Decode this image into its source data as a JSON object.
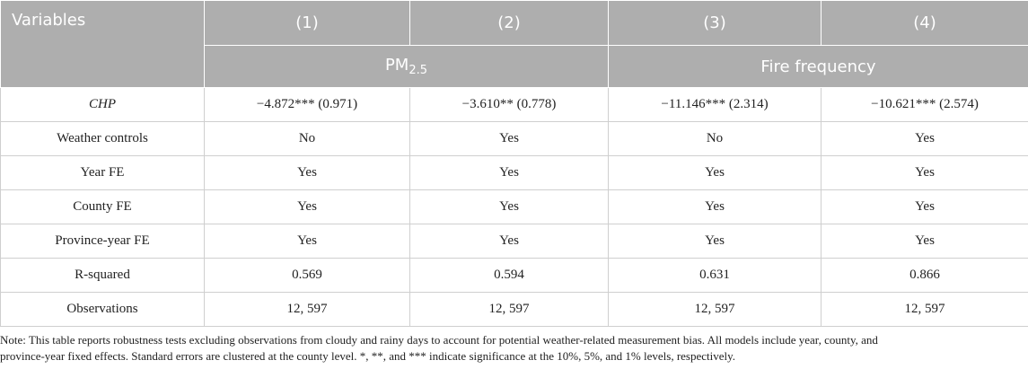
{
  "header": {
    "variables": "Variables",
    "columns": [
      "(1)",
      "(2)",
      "(3)",
      "(4)"
    ],
    "group1_main": "PM",
    "group1_sub": "2.5",
    "group2": "Fire frequency"
  },
  "rows": [
    {
      "label": "CHP",
      "cells": [
        "−4.872*** (0.971)",
        "−3.610** (0.778)",
        "−11.146*** (2.314)",
        "−10.621*** (2.574)"
      ]
    },
    {
      "label": "Weather controls",
      "cells": [
        "No",
        "Yes",
        "No",
        "Yes"
      ]
    },
    {
      "label": "Year FE",
      "cells": [
        "Yes",
        "Yes",
        "Yes",
        "Yes"
      ]
    },
    {
      "label": "County FE",
      "cells": [
        "Yes",
        "Yes",
        "Yes",
        "Yes"
      ]
    },
    {
      "label": "Province-year FE",
      "cells": [
        "Yes",
        "Yes",
        "Yes",
        "Yes"
      ]
    },
    {
      "label": "R-squared",
      "cells": [
        "0.569",
        "0.594",
        "0.631",
        "0.866"
      ]
    },
    {
      "label": "Observations",
      "cells": [
        "12, 597",
        "12, 597",
        "12, 597",
        "12, 597"
      ]
    }
  ],
  "note": {
    "line1": "Note: This table reports robustness tests excluding observations from cloudy and rainy days to account for potential weather-related measurement bias. All models include year, county, and",
    "line2": "province-year fixed effects. Standard errors are clustered at the county level. *, **, and *** indicate significance at the 10%, 5%, and 1% levels, respectively."
  }
}
